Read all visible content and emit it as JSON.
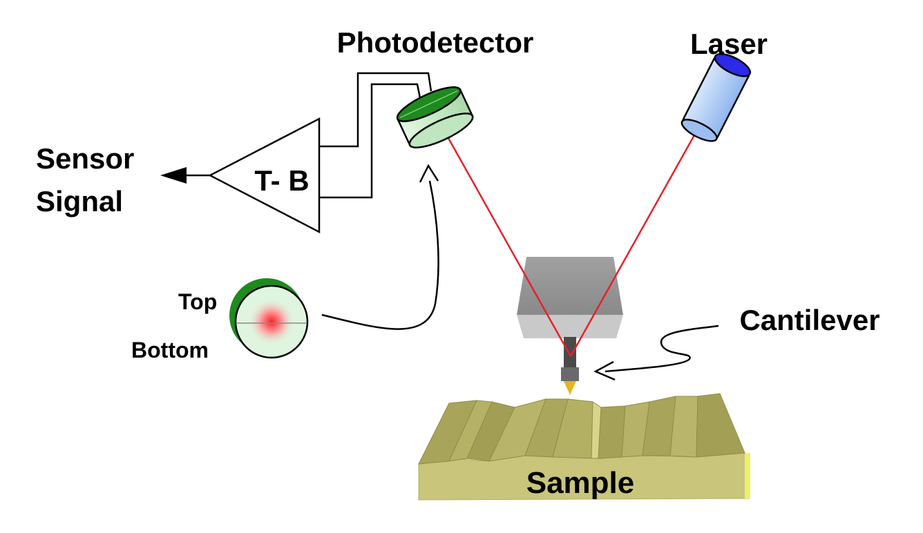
{
  "labels": {
    "photodetector": "Photodetector",
    "laser": "Laser",
    "sensor_line1": "Sensor",
    "sensor_line2": "Signal",
    "amplifier": "T- B",
    "top": "Top",
    "bottom": "Bottom",
    "cantilever": "Cantilever",
    "sample": "Sample"
  },
  "colors": {
    "laser_beam": "#e8202a",
    "laser_body": "#a9c8f5",
    "laser_face": "#2a2ae8",
    "detector_body": "#c4ecc4",
    "detector_top": "#1e8a1e",
    "spot": "#ff3030",
    "sample_body": "#c8c47a",
    "sample_top": "#a9a65a",
    "holder": "#9a9a9a"
  }
}
